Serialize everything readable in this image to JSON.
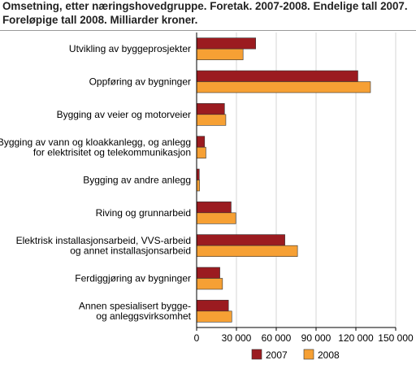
{
  "title": {
    "line1": "Omsetning, etter næringshovedgruppe. Foretak. 2007-2008. Endelige tall 2007.",
    "line2": "Foreløpige tall 2008. Milliarder kroner."
  },
  "colors": {
    "series_2007": "#9b1b20",
    "series_2008": "#f6a034",
    "grid": "#d4d4d4",
    "axis": "#000000"
  },
  "chart_data": {
    "type": "bar",
    "orientation": "horizontal",
    "categories": [
      [
        "Utvikling av byggeprosjekter"
      ],
      [
        "Oppføring av bygninger"
      ],
      [
        "Bygging av veier og motorveier"
      ],
      [
        "Bygging av vann og kloakkanlegg, og anlegg",
        "for elektrisitet og telekommunikasjon"
      ],
      [
        "Bygging av andre anlegg"
      ],
      [
        "Riving og grunnarbeid"
      ],
      [
        "Elektrisk installasjonsarbeid, VVS-arbeid",
        "og annet installasjonsarbeid"
      ],
      [
        "Ferdiggjøring av bygninger"
      ],
      [
        "Annen spesialisert bygge-",
        "og anleggsvirksomhet"
      ]
    ],
    "series": [
      {
        "name": "2007",
        "values": [
          44500,
          121500,
          21000,
          6000,
          2000,
          26000,
          66500,
          17500,
          24000
        ]
      },
      {
        "name": "2008",
        "values": [
          35000,
          131000,
          22000,
          7000,
          2200,
          29500,
          76000,
          19500,
          26500
        ]
      }
    ],
    "xlim": [
      0,
      150000
    ],
    "xticks": [
      0,
      30000,
      60000,
      90000,
      120000,
      150000
    ],
    "xtick_labels": [
      "0",
      "30 000",
      "60 000",
      "90 000",
      "120 000",
      "150 000"
    ],
    "grid": true,
    "legend_position": "bottom"
  }
}
